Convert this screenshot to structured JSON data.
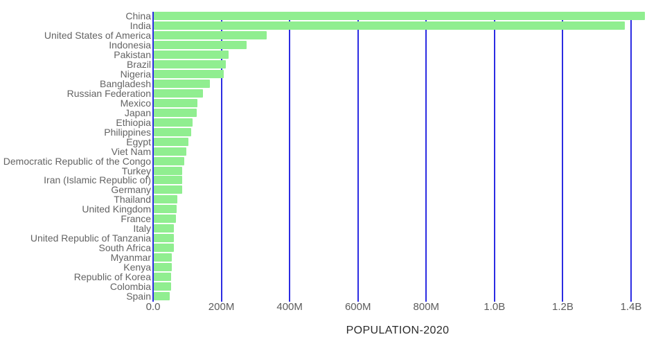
{
  "chart_data": {
    "type": "bar",
    "orientation": "horizontal",
    "title": "",
    "xlabel": "POPULATION-2020",
    "ylabel": "",
    "categories": [
      "China",
      "India",
      "United States of America",
      "Indonesia",
      "Pakistan",
      "Brazil",
      "Nigeria",
      "Bangladesh",
      "Russian Federation",
      "Mexico",
      "Japan",
      "Ethiopia",
      "Philippines",
      "Egypt",
      "Viet Nam",
      "Democratic Republic of the Congo",
      "Turkey",
      "Iran (Islamic Republic of)",
      "Germany",
      "Thailand",
      "United Kingdom",
      "France",
      "Italy",
      "United Republic of Tanzania",
      "South Africa",
      "Myanmar",
      "Kenya",
      "Republic of Korea",
      "Colombia",
      "Spain"
    ],
    "values_millions": [
      1439.3,
      1380.0,
      331.0,
      273.5,
      220.9,
      212.6,
      206.1,
      164.7,
      145.9,
      128.9,
      126.5,
      115.0,
      109.6,
      102.3,
      97.3,
      89.6,
      84.3,
      84.0,
      83.8,
      69.8,
      67.9,
      65.3,
      60.5,
      59.7,
      59.3,
      54.4,
      53.8,
      51.3,
      50.9,
      46.8
    ],
    "x_ticks": [
      "0.0",
      "200M",
      "400M",
      "600M",
      "800M",
      "1.0B",
      "1.2B",
      "1.4B"
    ],
    "x_tick_values_millions": [
      0,
      200,
      400,
      600,
      800,
      1000,
      1200,
      1400
    ],
    "xlim_millions": [
      0,
      1500
    ],
    "grid": true,
    "legend": false,
    "colors": {
      "bar": "#90ee90",
      "gridline": "#2b2be2",
      "country_label": "#636363",
      "tick_label": "#5c5c5c",
      "axis_title": "#2b2b2b"
    }
  }
}
